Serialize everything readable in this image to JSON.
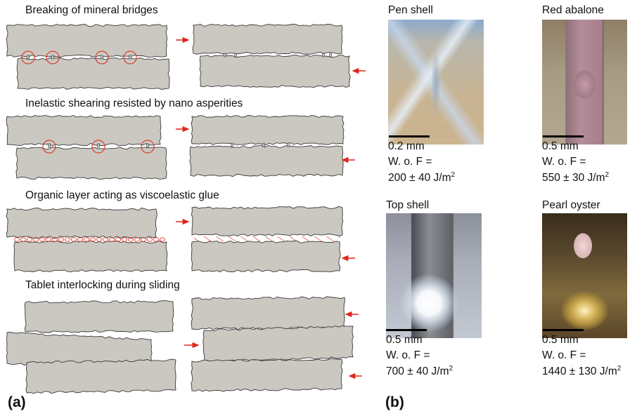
{
  "panel_a": {
    "label": "(a)",
    "mechanisms": [
      {
        "title": "Breaking of mineral bridges"
      },
      {
        "title": "Inelastic shearing resisted by nano asperities"
      },
      {
        "title": "Organic layer acting as viscoelastic glue"
      },
      {
        "title": "Tablet interlocking during sliding"
      }
    ]
  },
  "panel_b": {
    "label": "(b)",
    "samples": [
      {
        "name": "Pen shell",
        "scale": "0.2 mm",
        "wof_label": "W. o. F =",
        "wof_value": "200 ± 40 J/m",
        "wof_exp": "2"
      },
      {
        "name": "Red abalone",
        "scale": "0.5 mm",
        "wof_label": "W. o. F =",
        "wof_value": "550 ± 30 J/m",
        "wof_exp": "2"
      },
      {
        "name": "Top shell",
        "scale": "0.5 mm",
        "wof_label": "W. o. F =",
        "wof_value": "700 ± 40 J/m",
        "wof_exp": "2"
      },
      {
        "name": "Pearl oyster",
        "scale": "0.5 mm",
        "wof_label": "W. o. F =",
        "wof_value": "1440 ± 130 J/m",
        "wof_exp": "2"
      }
    ]
  },
  "colors": {
    "tablet": "#cbc8c2",
    "arrow": "#e0261b",
    "circle": "#d83b2a"
  }
}
